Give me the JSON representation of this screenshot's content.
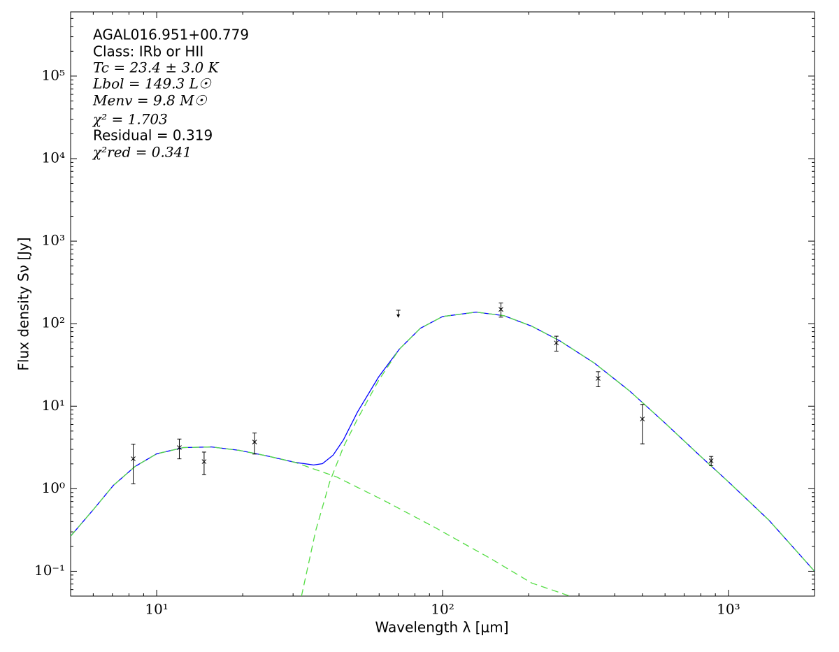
{
  "chart_data": {
    "type": "line",
    "x_label": "Wavelength λ [μm]",
    "y_label": "Flux density Sν [Jy]",
    "annotations": [
      "AGAL016.951+00.779",
      "Class: IRb or HII",
      "Tc = 23.4 ± 3.0 K",
      "Lbol = 149.3 L☉",
      "Menv = 9.8 M☉",
      "χ² = 1.703",
      "Residual = 0.319",
      "χ²red = 0.341"
    ],
    "xscale": "log",
    "yscale": "log",
    "xlim": [
      5,
      2000
    ],
    "ylim": [
      0.05,
      600000
    ],
    "xticks": [
      {
        "value": 10,
        "label": "10¹"
      },
      {
        "value": 100,
        "label": "10²"
      },
      {
        "value": 1000,
        "label": "10³"
      }
    ],
    "yticks": [
      {
        "value": 0.1,
        "label": "10⁻¹"
      },
      {
        "value": 1,
        "label": "10⁰"
      },
      {
        "value": 10,
        "label": "10¹"
      },
      {
        "value": 100,
        "label": "10²"
      },
      {
        "value": 1000,
        "label": "10³"
      },
      {
        "value": 10000,
        "label": "10⁴"
      },
      {
        "value": 100000,
        "label": "10⁵"
      }
    ],
    "series": [
      {
        "kind": "line",
        "color": "#0000ff",
        "dashed": false,
        "x": [
          5,
          6,
          7.06,
          8.4,
          10,
          12.4,
          15.5,
          19.4,
          24.3,
          30.4,
          35.4,
          38,
          41.4,
          45,
          50.4,
          59.7,
          70.6,
          83.6,
          100,
          131,
          164,
          205,
          257,
          340,
          451,
          597,
          791,
          1000,
          1384,
          2000
        ],
        "values": [
          0.266,
          0.557,
          1.1,
          1.86,
          2.65,
          3.15,
          3.21,
          2.92,
          2.5,
          2.09,
          1.94,
          2.01,
          2.55,
          3.91,
          8.51,
          22.5,
          49.1,
          87.9,
          122,
          138,
          125,
          93.3,
          62,
          33.2,
          15.3,
          6.35,
          2.55,
          1.21,
          0.417,
          0.1
        ]
      },
      {
        "kind": "line",
        "color": "#55dd44",
        "dashed": true,
        "x": [
          5,
          6,
          7.06,
          8.4,
          10,
          12.4,
          15.5,
          19.4,
          24.3,
          30.4,
          42.6,
          63.1,
          93.5,
          147,
          205,
          279
        ],
        "values": [
          0.266,
          0.557,
          1.1,
          1.86,
          2.65,
          3.15,
          3.21,
          2.92,
          2.5,
          2.09,
          1.39,
          0.705,
          0.343,
          0.143,
          0.072,
          0.05
        ]
      },
      {
        "kind": "line",
        "color": "#55dd44",
        "dashed": true,
        "x": [
          32.1,
          36,
          40.3,
          45,
          50.4,
          59.7,
          70.6,
          83.6,
          100,
          131,
          164,
          205,
          257,
          340,
          451,
          597,
          791,
          1000,
          1384,
          2000
        ],
        "values": [
          0.05,
          0.311,
          1.21,
          3.21,
          7,
          20.4,
          49.1,
          87.9,
          122,
          138,
          125,
          93.3,
          62,
          33.2,
          15.3,
          6.35,
          2.55,
          1.21,
          0.417,
          0.1
        ]
      },
      {
        "kind": "errorbar",
        "color": "#000000",
        "x": [
          8.28,
          12,
          14.65,
          22,
          160,
          250,
          350,
          500,
          870
        ],
        "values": [
          2.31,
          3.15,
          2.13,
          3.68,
          149,
          58.5,
          21.7,
          7,
          2.18
        ],
        "errors": [
          1.16,
          0.85,
          0.65,
          1.05,
          29,
          12,
          4.5,
          3.5,
          0.28
        ]
      },
      {
        "kind": "upper-limit",
        "color": "#000000",
        "x": [
          70
        ],
        "values": [
          140
        ]
      }
    ]
  }
}
